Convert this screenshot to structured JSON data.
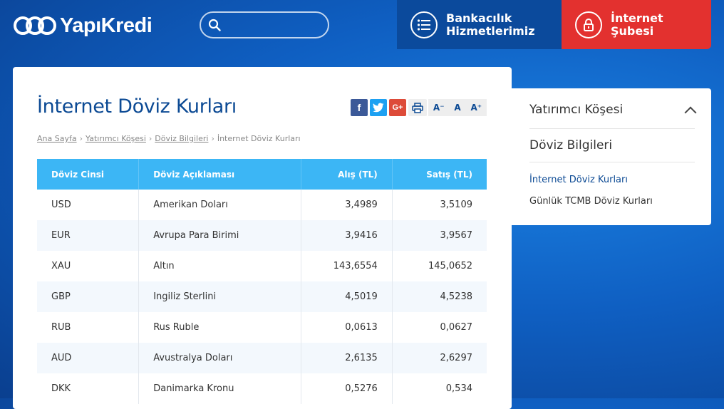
{
  "header": {
    "logo_text": "YapıKredi",
    "search": {
      "placeholder": "",
      "value": ""
    },
    "bank_button": {
      "line1": "Bankacılık",
      "line2": "Hizmetlerimiz"
    },
    "internet_button": {
      "line1": "İnternet",
      "line2": "Şubesi"
    }
  },
  "main": {
    "title": "İnternet Döviz Kurları",
    "font_controls": [
      "A⁻",
      "A",
      "A⁺"
    ],
    "share": {
      "facebook": "f",
      "google": "G+"
    },
    "breadcrumb": [
      "Ana Sayfa",
      "Yatırımcı Köşesi",
      "Döviz Bilgileri",
      "İnternet Döviz Kurları"
    ],
    "table": {
      "headers": [
        "Döviz Cinsi",
        "Döviz Açıklaması",
        "Alış (TL)",
        "Satış (TL)"
      ],
      "rows": [
        [
          "USD",
          "Amerikan Doları",
          "3,4989",
          "3,5109"
        ],
        [
          "EUR",
          "Avrupa Para Birimi",
          "3,9416",
          "3,9567"
        ],
        [
          "XAU",
          "Altın",
          "143,6554",
          "145,0652"
        ],
        [
          "GBP",
          "Ingiliz Sterlini",
          "4,5019",
          "4,5238"
        ],
        [
          "RUB",
          "Rus Ruble",
          "0,0613",
          "0,0627"
        ],
        [
          "AUD",
          "Avustralya Doları",
          "2,6135",
          "2,6297"
        ],
        [
          "DKK",
          "Danimarka Kronu",
          "0,5276",
          "0,534"
        ]
      ]
    }
  },
  "sidebar": {
    "heading": "Yatırımcı Köşesi",
    "subheading": "Döviz Bilgileri",
    "links": [
      "İnternet Döviz Kurları",
      "Günlük TCMB Döviz Kurları"
    ]
  },
  "colors": {
    "brand_blue": "#0c4a94",
    "header_red": "#e3312f",
    "table_header": "#3cb6f5"
  }
}
